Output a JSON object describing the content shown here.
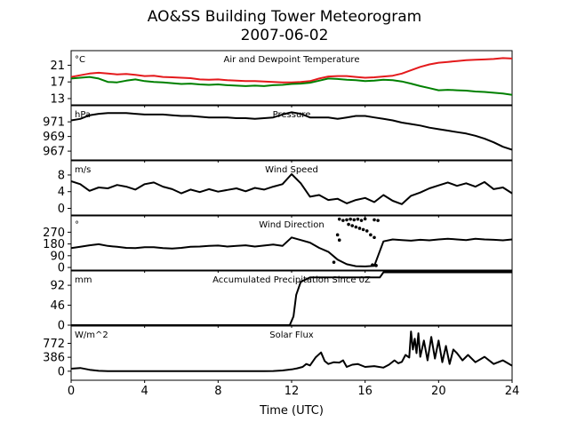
{
  "title_line1": "AO&SS Building Tower Meteorogram",
  "title_line2": "2007-06-02",
  "chart_data": [
    {
      "type": "line",
      "title": "Air and Dewpoint Temperature",
      "unit": "°C",
      "ylim": [
        11.5,
        24.5
      ],
      "yticks": [
        13,
        17,
        21
      ],
      "x": [
        0,
        0.5,
        1,
        1.5,
        2,
        2.5,
        3,
        3.5,
        4,
        4.5,
        5,
        5.5,
        6,
        6.5,
        7,
        7.5,
        8,
        8.5,
        9,
        9.5,
        10,
        10.5,
        11,
        11.5,
        12,
        12.5,
        13,
        13.5,
        14,
        14.5,
        15,
        15.5,
        16,
        16.5,
        17,
        17.5,
        18,
        18.5,
        19,
        19.5,
        20,
        20.5,
        21,
        21.5,
        22,
        22.5,
        23,
        23.5,
        24
      ],
      "series": [
        {
          "color": "#e41a1c",
          "values": [
            18.2,
            18.6,
            19.0,
            19.2,
            19.0,
            18.8,
            18.9,
            18.7,
            18.4,
            18.5,
            18.2,
            18.1,
            18.0,
            17.9,
            17.6,
            17.5,
            17.6,
            17.4,
            17.3,
            17.2,
            17.2,
            17.1,
            17.0,
            16.9,
            16.9,
            17.0,
            17.2,
            17.8,
            18.3,
            18.4,
            18.4,
            18.2,
            18.0,
            18.1,
            18.3,
            18.5,
            19.0,
            19.8,
            20.6,
            21.2,
            21.6,
            21.8,
            22.0,
            22.2,
            22.3,
            22.4,
            22.5,
            22.7,
            22.6
          ]
        },
        {
          "color": "#008000",
          "values": [
            17.8,
            18.0,
            18.2,
            17.8,
            17.0,
            16.9,
            17.3,
            17.6,
            17.2,
            17.0,
            16.9,
            16.7,
            16.5,
            16.6,
            16.4,
            16.3,
            16.4,
            16.2,
            16.1,
            16.0,
            16.1,
            16.0,
            16.2,
            16.3,
            16.5,
            16.6,
            16.8,
            17.3,
            17.8,
            17.7,
            17.5,
            17.4,
            17.2,
            17.3,
            17.5,
            17.4,
            17.1,
            16.6,
            16.0,
            15.5,
            15.0,
            15.1,
            15.0,
            14.9,
            14.7,
            14.6,
            14.4,
            14.2,
            13.9
          ]
        }
      ]
    },
    {
      "type": "line",
      "title": "Pressure",
      "unit": "hPa",
      "ylim": [
        965.8,
        973.2
      ],
      "yticks": [
        967,
        969,
        971
      ],
      "x": [
        0,
        0.5,
        1,
        1.5,
        2,
        2.5,
        3,
        3.5,
        4,
        4.5,
        5,
        5.5,
        6,
        6.5,
        7,
        7.5,
        8,
        8.5,
        9,
        9.5,
        10,
        10.5,
        11,
        11.5,
        12,
        12.5,
        13,
        13.5,
        14,
        14.5,
        15,
        15.5,
        16,
        16.5,
        17,
        17.5,
        18,
        18.5,
        19,
        19.5,
        20,
        20.5,
        21,
        21.5,
        22,
        22.5,
        23,
        23.5,
        24
      ],
      "series": [
        {
          "color": "#000000",
          "values": [
            971.2,
            971.4,
            971.9,
            972.1,
            972.2,
            972.2,
            972.2,
            972.1,
            972.0,
            972.0,
            972.0,
            971.9,
            971.8,
            971.8,
            971.7,
            971.6,
            971.6,
            971.6,
            971.5,
            971.5,
            971.4,
            971.5,
            971.6,
            972.0,
            972.3,
            972.1,
            971.6,
            971.6,
            971.6,
            971.4,
            971.6,
            971.8,
            971.8,
            971.6,
            971.4,
            971.2,
            970.9,
            970.7,
            970.5,
            970.2,
            970.0,
            969.8,
            969.6,
            969.4,
            969.1,
            968.7,
            968.2,
            967.6,
            967.2
          ]
        }
      ]
    },
    {
      "type": "line",
      "title": "Wind Speed",
      "unit": "m/s",
      "ylim": [
        -1.6,
        11.4
      ],
      "yticks": [
        0,
        4,
        8
      ],
      "x": [
        0,
        0.5,
        1,
        1.5,
        2,
        2.5,
        3,
        3.5,
        4,
        4.5,
        5,
        5.5,
        6,
        6.5,
        7,
        7.5,
        8,
        8.5,
        9,
        9.5,
        10,
        10.5,
        11,
        11.5,
        12,
        12.5,
        13,
        13.5,
        14,
        14.5,
        15,
        15.5,
        16,
        16.5,
        17,
        17.5,
        18,
        18.5,
        19,
        19.5,
        20,
        20.5,
        21,
        21.5,
        22,
        22.5,
        23,
        23.5,
        24
      ],
      "series": [
        {
          "color": "#000000",
          "values": [
            6.5,
            5.8,
            4.2,
            5.0,
            4.8,
            5.6,
            5.2,
            4.5,
            5.8,
            6.2,
            5.2,
            4.6,
            3.6,
            4.5,
            3.9,
            4.6,
            4.0,
            4.4,
            4.8,
            4.1,
            4.9,
            4.5,
            5.2,
            5.8,
            8.2,
            6.0,
            2.8,
            3.2,
            2.0,
            2.3,
            1.2,
            2.0,
            2.5,
            1.5,
            3.2,
            1.8,
            1.0,
            3.0,
            3.8,
            4.8,
            5.5,
            6.2,
            5.4,
            6.0,
            5.2,
            6.3,
            4.6,
            5.0,
            3.6
          ]
        }
      ]
    },
    {
      "type": "line",
      "title": "Wind Direction",
      "unit": "°",
      "ylim": [
        -20,
        395
      ],
      "yticks": [
        0,
        90,
        180,
        270
      ],
      "x": [
        0,
        0.5,
        1,
        1.5,
        2,
        2.5,
        3,
        3.5,
        4,
        4.5,
        5,
        5.5,
        6,
        6.5,
        7,
        7.5,
        8,
        8.5,
        9,
        9.5,
        10,
        10.5,
        11,
        11.5,
        12,
        12.5,
        13,
        13.5,
        14,
        14.5,
        15,
        15.5,
        16,
        16.5,
        17,
        17.5,
        18,
        18.5,
        19,
        19.5,
        20,
        20.5,
        21,
        21.5,
        22,
        22.5,
        23,
        23.5,
        24
      ],
      "series": [
        {
          "color": "#000000",
          "values": [
            148,
            158,
            170,
            178,
            165,
            158,
            150,
            148,
            155,
            155,
            148,
            145,
            150,
            158,
            160,
            165,
            168,
            160,
            165,
            170,
            160,
            168,
            175,
            165,
            230,
            210,
            190,
            150,
            120,
            60,
            25,
            10,
            8,
            12,
            200,
            215,
            210,
            205,
            212,
            208,
            215,
            220,
            215,
            210,
            220,
            215,
            212,
            208,
            215
          ]
        }
      ],
      "scatter_points": [
        [
          14.6,
          370
        ],
        [
          14.8,
          360
        ],
        [
          15.0,
          365
        ],
        [
          15.2,
          370
        ],
        [
          15.4,
          365
        ],
        [
          15.6,
          370
        ],
        [
          15.8,
          360
        ],
        [
          16.0,
          372
        ],
        [
          16.5,
          365
        ],
        [
          16.7,
          360
        ],
        [
          15.1,
          330
        ],
        [
          15.3,
          320
        ],
        [
          15.5,
          310
        ],
        [
          15.7,
          300
        ],
        [
          15.9,
          290
        ],
        [
          16.1,
          280
        ],
        [
          16.3,
          250
        ],
        [
          16.5,
          230
        ],
        [
          14.5,
          250
        ],
        [
          14.6,
          210
        ],
        [
          14.3,
          40
        ],
        [
          16.4,
          20
        ],
        [
          16.6,
          15
        ]
      ]
    },
    {
      "type": "line",
      "title": "Accumulated Precipitation Since 0Z",
      "unit": "mm",
      "ylim": [
        0,
        125
      ],
      "yticks": [
        0,
        46,
        92
      ],
      "x": [
        0,
        1,
        2,
        3,
        4,
        5,
        6,
        7,
        8,
        9,
        10,
        11,
        11.9,
        12.1,
        12.25,
        12.5,
        13,
        13.5,
        14,
        15,
        16,
        16.8,
        17.0,
        18,
        19,
        20,
        21,
        22,
        23,
        24
      ],
      "series": [
        {
          "color": "#000000",
          "values": [
            0,
            0,
            0,
            0,
            0,
            0,
            0,
            0,
            0,
            0,
            0,
            0,
            0,
            20,
            70,
            100,
            110,
            110,
            110,
            110,
            110,
            110,
            122,
            122,
            122,
            122,
            122,
            122,
            122,
            122
          ]
        }
      ]
    },
    {
      "type": "line",
      "title": "Solar Flux",
      "unit": "W/m^2",
      "ylim": [
        -250,
        1250
      ],
      "yticks": [
        0,
        386,
        772
      ],
      "x": [
        0,
        0.5,
        1,
        1.5,
        2,
        3,
        4,
        5,
        6,
        7,
        8,
        9,
        10,
        10.5,
        11,
        11.5,
        12,
        12.3,
        12.6,
        12.8,
        13.0,
        13.3,
        13.6,
        13.8,
        14.0,
        14.3,
        14.6,
        14.8,
        15,
        15.3,
        15.6,
        16,
        16.5,
        17,
        17.3,
        17.6,
        17.8,
        18.0,
        18.2,
        18.4,
        18.5,
        18.6,
        18.7,
        18.8,
        18.9,
        19.0,
        19.2,
        19.4,
        19.6,
        19.8,
        20.0,
        20.2,
        20.4,
        20.6,
        20.8,
        21,
        21.3,
        21.6,
        22,
        22.5,
        23,
        23.5,
        24
      ],
      "series": [
        {
          "color": "#000000",
          "values": [
            70,
            90,
            40,
            10,
            0,
            0,
            0,
            0,
            0,
            0,
            0,
            0,
            0,
            0,
            5,
            20,
            50,
            80,
            120,
            200,
            160,
            380,
            520,
            280,
            200,
            250,
            240,
            300,
            120,
            180,
            200,
            120,
            140,
            100,
            180,
            300,
            220,
            260,
            450,
            380,
            1100,
            600,
            900,
            500,
            1050,
            400,
            850,
            300,
            950,
            350,
            850,
            250,
            700,
            200,
            600,
            500,
            300,
            450,
            250,
            400,
            200,
            300,
            150
          ]
        }
      ]
    }
  ],
  "shared_x": {
    "label": "Time (UTC)",
    "xlim": [
      0,
      24
    ],
    "ticks": [
      0,
      4,
      8,
      12,
      16,
      20,
      24
    ]
  }
}
